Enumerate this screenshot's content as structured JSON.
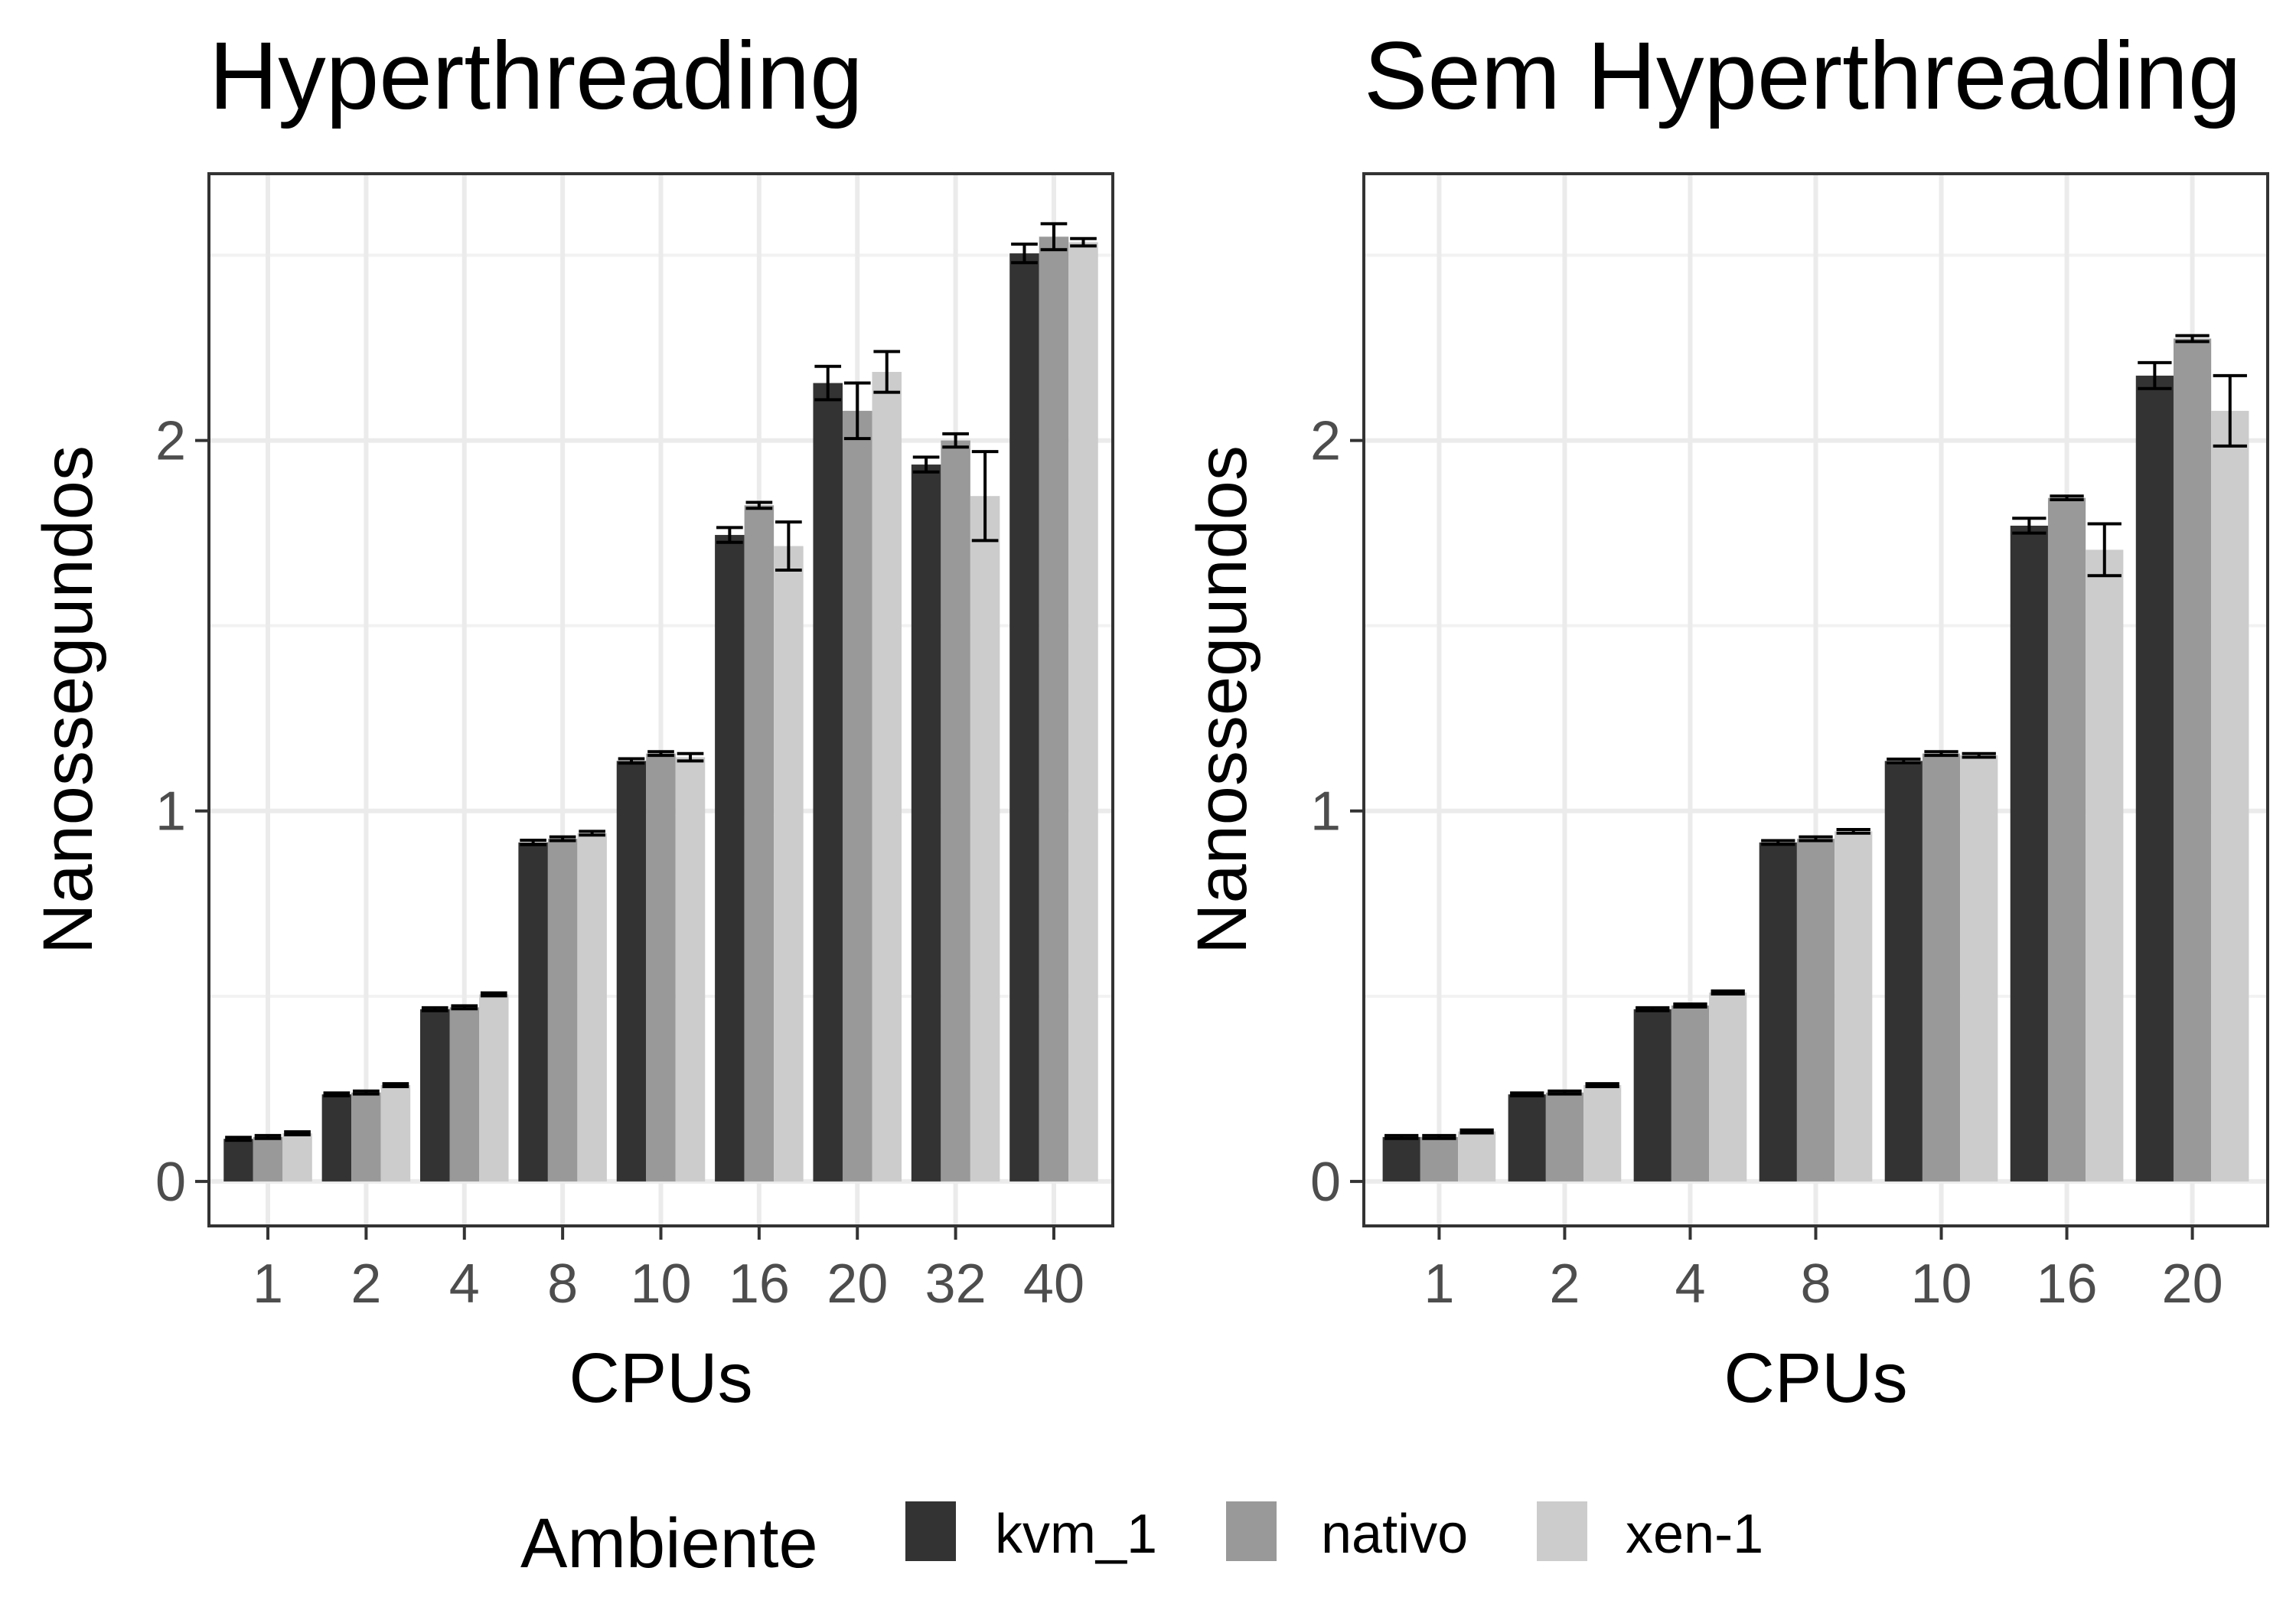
{
  "chart_data": [
    {
      "type": "bar",
      "title": "Hyperthreading",
      "xlabel": "CPUs",
      "ylabel": "Nanossegundos",
      "categories": [
        "1",
        "2",
        "4",
        "8",
        "10",
        "16",
        "20",
        "32",
        "40"
      ],
      "yticks": [
        "0",
        "1",
        "2"
      ],
      "ylim": [
        -0.12,
        2.72
      ],
      "grid": true,
      "series": [
        {
          "name": "kvm_1",
          "values": [
            0.115,
            0.235,
            0.465,
            0.915,
            1.135,
            1.745,
            2.155,
            1.935,
            2.505
          ],
          "errors": [
            0.004,
            0.004,
            0.004,
            0.006,
            0.006,
            0.02,
            0.045,
            0.02,
            0.025
          ]
        },
        {
          "name": "nativo",
          "values": [
            0.12,
            0.24,
            0.47,
            0.925,
            1.155,
            1.825,
            2.08,
            2.0,
            2.55
          ],
          "errors": [
            0.004,
            0.004,
            0.004,
            0.005,
            0.005,
            0.008,
            0.075,
            0.018,
            0.035
          ]
        },
        {
          "name": "xen-1",
          "values": [
            0.13,
            0.26,
            0.505,
            0.94,
            1.145,
            1.715,
            2.185,
            1.85,
            2.535
          ],
          "errors": [
            0.004,
            0.004,
            0.004,
            0.005,
            0.01,
            0.065,
            0.055,
            0.12,
            0.01
          ]
        }
      ]
    },
    {
      "type": "bar",
      "title": "Sem Hyperthreading",
      "xlabel": "CPUs",
      "ylabel": "Nanossegundos",
      "categories": [
        "1",
        "2",
        "4",
        "8",
        "10",
        "16",
        "20"
      ],
      "yticks": [
        "0",
        "1",
        "2"
      ],
      "ylim": [
        -0.12,
        2.72
      ],
      "grid": true,
      "series": [
        {
          "name": "kvm_1",
          "values": [
            0.12,
            0.235,
            0.465,
            0.915,
            1.135,
            1.77,
            2.175
          ],
          "errors": [
            0.004,
            0.004,
            0.004,
            0.005,
            0.005,
            0.02,
            0.035
          ]
        },
        {
          "name": "nativo",
          "values": [
            0.12,
            0.24,
            0.475,
            0.925,
            1.155,
            1.845,
            2.275
          ],
          "errors": [
            0.004,
            0.004,
            0.004,
            0.005,
            0.005,
            0.005,
            0.008
          ]
        },
        {
          "name": "xen-1",
          "values": [
            0.135,
            0.26,
            0.51,
            0.945,
            1.15,
            1.705,
            2.08
          ],
          "errors": [
            0.004,
            0.004,
            0.004,
            0.005,
            0.005,
            0.07,
            0.095
          ]
        }
      ]
    }
  ],
  "legend": {
    "title": "Ambiente",
    "position": "bottom",
    "items": [
      {
        "label": "kvm_1",
        "color": "#333333"
      },
      {
        "label": "nativo",
        "color": "#999999"
      },
      {
        "label": "xen-1",
        "color": "#cccccc"
      }
    ]
  }
}
